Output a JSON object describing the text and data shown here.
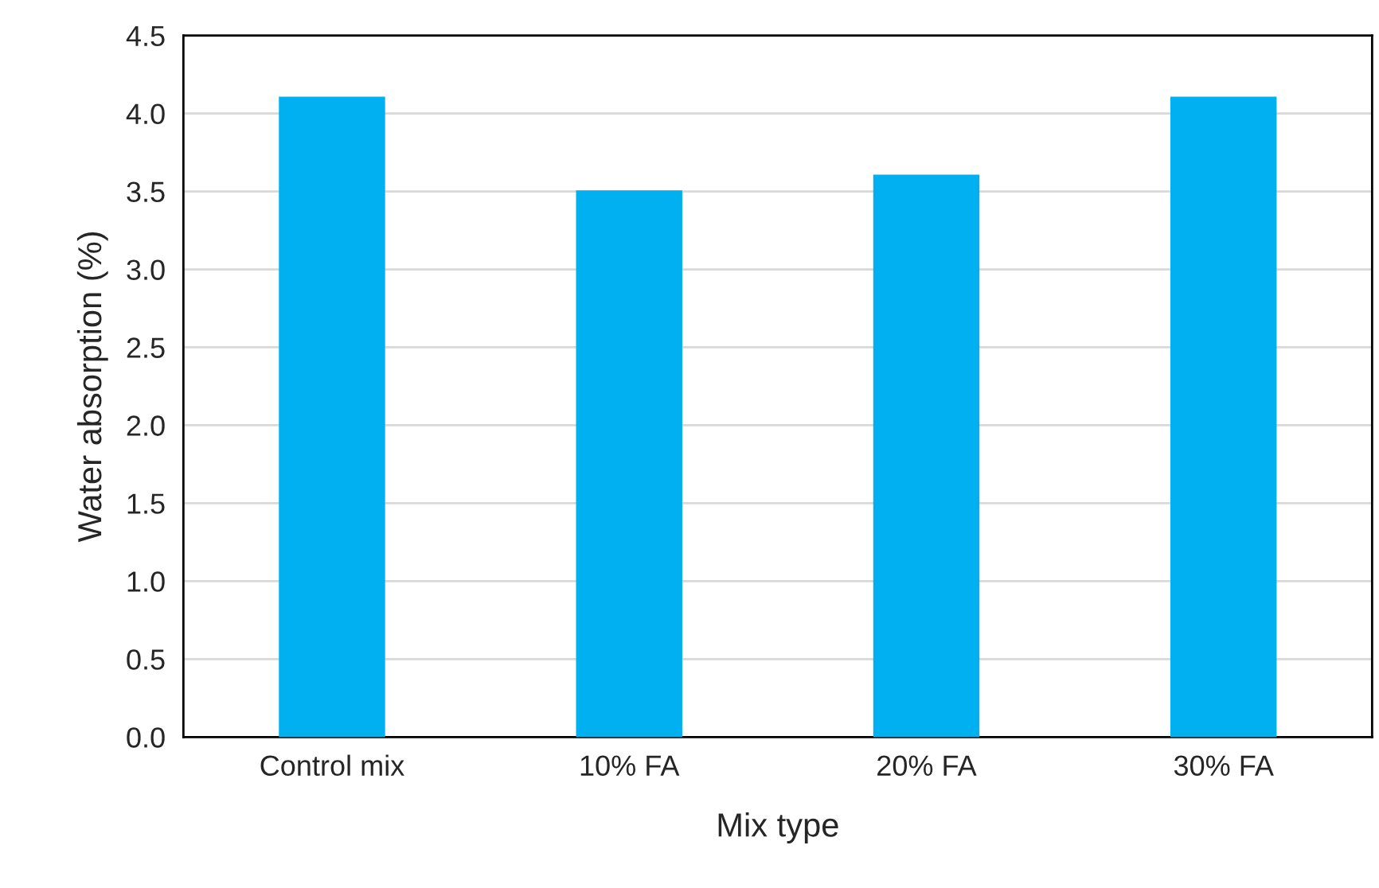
{
  "chart_data": {
    "type": "bar",
    "xlabel": "Mix type",
    "ylabel": "Water absorption (%)",
    "categories": [
      "Control mix",
      "10% FA",
      "20% FA",
      "30% FA"
    ],
    "values": [
      4.1,
      3.5,
      3.6,
      4.1
    ],
    "color": "#00b0f0",
    "ylim": [
      0,
      4.5
    ],
    "yticks": [
      {
        "value": 0,
        "label": "0.0"
      },
      {
        "value": 0.5,
        "label": "0.5"
      },
      {
        "value": 1,
        "label": "1.0"
      },
      {
        "value": 1.5,
        "label": "1.5"
      },
      {
        "value": 2,
        "label": "2.0"
      },
      {
        "value": 2.5,
        "label": "2.5"
      },
      {
        "value": 3,
        "label": "3.0"
      },
      {
        "value": 3.5,
        "label": "3.5"
      },
      {
        "value": 4,
        "label": "4.0"
      },
      {
        "value": 4.5,
        "label": "4.5"
      }
    ],
    "grid": "y"
  }
}
